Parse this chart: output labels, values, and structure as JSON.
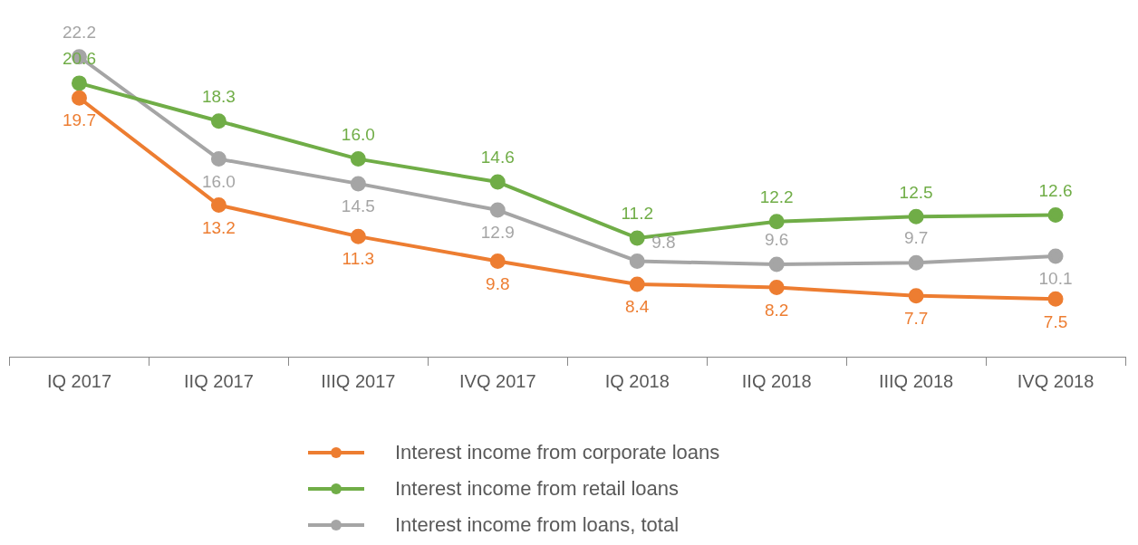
{
  "chart_data": {
    "type": "line",
    "categories": [
      "IQ 2017",
      "IIQ 2017",
      "IIIQ 2017",
      "IVQ 2017",
      "IQ 2018",
      "IIQ 2018",
      "IIIQ 2018",
      "IVQ 2018"
    ],
    "series": [
      {
        "name": "Interest income from corporate loans",
        "color": "#ed7d31",
        "values": [
          19.7,
          13.2,
          11.3,
          9.8,
          8.4,
          8.2,
          7.7,
          7.5
        ],
        "value_labels": [
          "19.7",
          "13.2",
          "11.3",
          "9.8",
          "8.4",
          "8.2",
          "7.7",
          "7.5"
        ]
      },
      {
        "name": "Interest income from retail loans",
        "color": "#70ad47",
        "values": [
          20.6,
          18.3,
          16.0,
          14.6,
          11.2,
          12.2,
          12.5,
          12.6
        ],
        "value_labels": [
          "20.6",
          "18.3",
          "16.0",
          "14.6",
          "11.2",
          "12.2",
          "12.5",
          "12.6"
        ]
      },
      {
        "name": "Interest income from loans, total",
        "color": "#a5a5a5",
        "values": [
          22.2,
          16.0,
          14.5,
          12.9,
          9.8,
          9.6,
          9.7,
          10.1
        ],
        "value_labels": [
          "22.2",
          "16.0",
          "14.5",
          "12.9",
          "9.8",
          "9.6",
          "9.7",
          "10.1"
        ]
      }
    ],
    "legend": "bottom",
    "marker": "circle",
    "line_style": "solid"
  }
}
